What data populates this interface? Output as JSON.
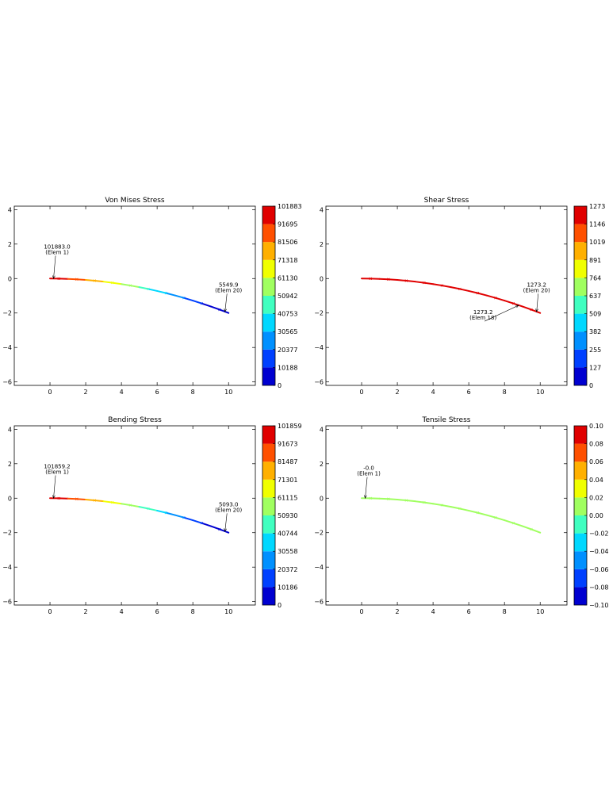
{
  "chart_data": [
    {
      "type": "line",
      "title": "Von Mises Stress",
      "xlim": [
        -2,
        11.5
      ],
      "ylim": [
        -6.2,
        4.2
      ],
      "xticks": [
        0,
        2,
        4,
        6,
        8,
        10
      ],
      "yticks": [
        4,
        2,
        0,
        -2,
        -4,
        -6
      ],
      "x": [
        0,
        0.5,
        1,
        1.5,
        2,
        2.5,
        3,
        3.5,
        4,
        4.5,
        5,
        5.5,
        6,
        6.5,
        7,
        7.5,
        8,
        8.5,
        9,
        9.5,
        10
      ],
      "y": [
        0,
        -0.005,
        -0.02,
        -0.045,
        -0.08,
        -0.125,
        -0.18,
        -0.245,
        -0.32,
        -0.405,
        -0.5,
        -0.605,
        -0.72,
        -0.845,
        -0.98,
        -1.125,
        -1.28,
        -1.445,
        -1.62,
        -1.805,
        -2.0
      ],
      "values": [
        101883,
        96561,
        91239,
        85917,
        80595,
        75273,
        69951,
        64629,
        59307,
        53985,
        48663,
        43341,
        38019,
        32697,
        27375,
        22053,
        16731,
        11409,
        8600,
        7000,
        5549.9
      ],
      "colorbar": {
        "min": 0,
        "max": 101883,
        "ticks": [
          "101883",
          "91695",
          "81506",
          "71318",
          "61130",
          "50942",
          "40753",
          "30565",
          "20377",
          "10188",
          "0"
        ]
      },
      "annotations": [
        {
          "x": 0.2,
          "y": 0.0,
          "value": "101883.0",
          "elem": "(Elem 1)",
          "text_x": 0.4,
          "text_y": 1.6
        },
        {
          "x": 9.8,
          "y": -1.93,
          "value": "5549.9",
          "elem": "(Elem 20)",
          "text_x": 10.0,
          "text_y": -0.6
        }
      ]
    },
    {
      "type": "line",
      "title": "Shear Stress",
      "xlim": [
        -2,
        11.5
      ],
      "ylim": [
        -6.2,
        4.2
      ],
      "xticks": [
        0,
        2,
        4,
        6,
        8,
        10
      ],
      "yticks": [
        4,
        2,
        0,
        -2,
        -4,
        -6
      ],
      "x": [
        0,
        0.5,
        1,
        1.5,
        2,
        2.5,
        3,
        3.5,
        4,
        4.5,
        5,
        5.5,
        6,
        6.5,
        7,
        7.5,
        8,
        8.5,
        9,
        9.5,
        10
      ],
      "y": [
        0,
        -0.005,
        -0.02,
        -0.045,
        -0.08,
        -0.125,
        -0.18,
        -0.245,
        -0.32,
        -0.405,
        -0.5,
        -0.605,
        -0.72,
        -0.845,
        -0.98,
        -1.125,
        -1.28,
        -1.445,
        -1.62,
        -1.805,
        -2.0
      ],
      "values": [
        1273.2,
        1273.2,
        1273.2,
        1273.2,
        1273.2,
        1273.2,
        1273.2,
        1273.2,
        1273.2,
        1273.2,
        1273.2,
        1273.2,
        1273.2,
        1273.2,
        1273.2,
        1273.2,
        1273.2,
        1273.2,
        1273.2,
        1273.2,
        1273.2
      ],
      "colorbar": {
        "min": 0,
        "max": 1273,
        "ticks": [
          "1273",
          "1146",
          "1019",
          "891",
          "764",
          "637",
          "509",
          "382",
          "255",
          "127",
          "0"
        ]
      },
      "annotations": [
        {
          "x": 9.8,
          "y": -1.93,
          "value": "1273.2",
          "elem": "(Elem 20)",
          "text_x": 9.8,
          "text_y": -0.6
        },
        {
          "x": 8.8,
          "y": -1.55,
          "value": "1273.2",
          "elem": "(Elem 18)",
          "text_x": 6.8,
          "text_y": -2.2
        }
      ]
    },
    {
      "type": "line",
      "title": "Bending Stress",
      "xlim": [
        -2,
        11.5
      ],
      "ylim": [
        -6.2,
        4.2
      ],
      "xticks": [
        0,
        2,
        4,
        6,
        8,
        10
      ],
      "yticks": [
        4,
        2,
        0,
        -2,
        -4,
        -6
      ],
      "x": [
        0,
        0.5,
        1,
        1.5,
        2,
        2.5,
        3,
        3.5,
        4,
        4.5,
        5,
        5.5,
        6,
        6.5,
        7,
        7.5,
        8,
        8.5,
        9,
        9.5,
        10
      ],
      "y": [
        0,
        -0.005,
        -0.02,
        -0.045,
        -0.08,
        -0.125,
        -0.18,
        -0.245,
        -0.32,
        -0.405,
        -0.5,
        -0.605,
        -0.72,
        -0.845,
        -0.98,
        -1.125,
        -1.28,
        -1.445,
        -1.62,
        -1.805,
        -2.0
      ],
      "values": [
        101859,
        96546,
        91233,
        85920,
        80607,
        75294,
        69981,
        64668,
        59355,
        54042,
        48729,
        43416,
        38103,
        32790,
        27477,
        22164,
        16851,
        11538,
        8400,
        6700,
        5093.0
      ],
      "colorbar": {
        "min": 0,
        "max": 101859,
        "ticks": [
          "101859",
          "91673",
          "81487",
          "71301",
          "61115",
          "50930",
          "40744",
          "30558",
          "20372",
          "10186",
          "0"
        ]
      },
      "annotations": [
        {
          "x": 0.2,
          "y": 0.0,
          "value": "101859.2",
          "elem": "(Elem 1)",
          "text_x": 0.4,
          "text_y": 1.6
        },
        {
          "x": 9.8,
          "y": -1.93,
          "value": "5093.0",
          "elem": "(Elem 20)",
          "text_x": 10.0,
          "text_y": -0.6
        }
      ]
    },
    {
      "type": "line",
      "title": "Tensile Stress",
      "xlim": [
        -2,
        11.5
      ],
      "ylim": [
        -6.2,
        4.2
      ],
      "xticks": [
        0,
        2,
        4,
        6,
        8,
        10
      ],
      "yticks": [
        4,
        2,
        0,
        -2,
        -4,
        -6
      ],
      "x": [
        0,
        0.5,
        1,
        1.5,
        2,
        2.5,
        3,
        3.5,
        4,
        4.5,
        5,
        5.5,
        6,
        6.5,
        7,
        7.5,
        8,
        8.5,
        9,
        9.5,
        10
      ],
      "y": [
        0,
        -0.005,
        -0.02,
        -0.045,
        -0.08,
        -0.125,
        -0.18,
        -0.245,
        -0.32,
        -0.405,
        -0.5,
        -0.605,
        -0.72,
        -0.845,
        -0.98,
        -1.125,
        -1.28,
        -1.445,
        -1.62,
        -1.805,
        -2.0
      ],
      "values": [
        0,
        0,
        0,
        0,
        0,
        0,
        0,
        0,
        0,
        0,
        0,
        0,
        0,
        0,
        0,
        0,
        0,
        0,
        0,
        0,
        0
      ],
      "colorbar": {
        "min": -0.1,
        "max": 0.1,
        "ticks": [
          "0.10",
          "0.08",
          "0.06",
          "0.04",
          "0.02",
          "0.00",
          "−0.02",
          "−0.04",
          "−0.06",
          "−0.08",
          "−0.10"
        ]
      },
      "annotations": [
        {
          "x": 0.2,
          "y": 0.0,
          "value": "-0.0",
          "elem": "(Elem 1)",
          "text_x": 0.4,
          "text_y": 1.5
        }
      ]
    }
  ]
}
